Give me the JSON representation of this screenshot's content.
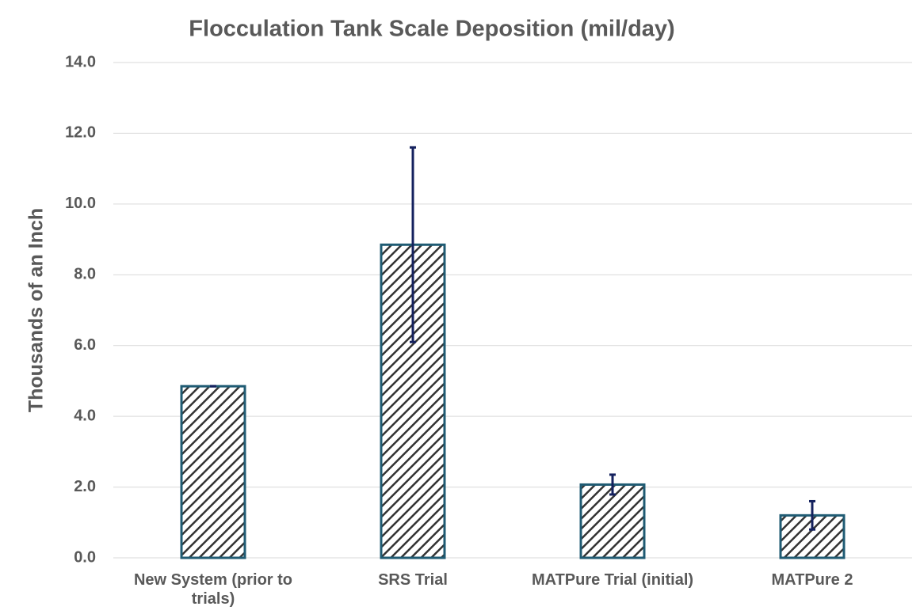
{
  "chart_data": {
    "type": "bar",
    "title": "Flocculation Tank Scale Deposition (mil/day)",
    "y_label": "Thousands of an Inch",
    "categories": [
      "New System (prior to trials)",
      "SRS Trial",
      "MATPure Trial (initial)",
      "MATPure 2"
    ],
    "values": [
      4.85,
      8.85,
      2.07,
      1.2
    ],
    "errors": [
      0,
      2.75,
      0.28,
      0.4
    ],
    "color": "#1f5b73",
    "error_color": "#14215e",
    "ylim": [
      0,
      14
    ],
    "yticks": [
      {
        "value": 0,
        "label": "0.0"
      },
      {
        "value": 2,
        "label": "2.0"
      },
      {
        "value": 4,
        "label": "4.0"
      },
      {
        "value": 6,
        "label": "6.0"
      },
      {
        "value": 8,
        "label": "8.0"
      },
      {
        "value": 10,
        "label": "10.0"
      },
      {
        "value": 12,
        "label": "12.0"
      },
      {
        "value": 14,
        "label": "14.0"
      }
    ],
    "grid": true
  }
}
